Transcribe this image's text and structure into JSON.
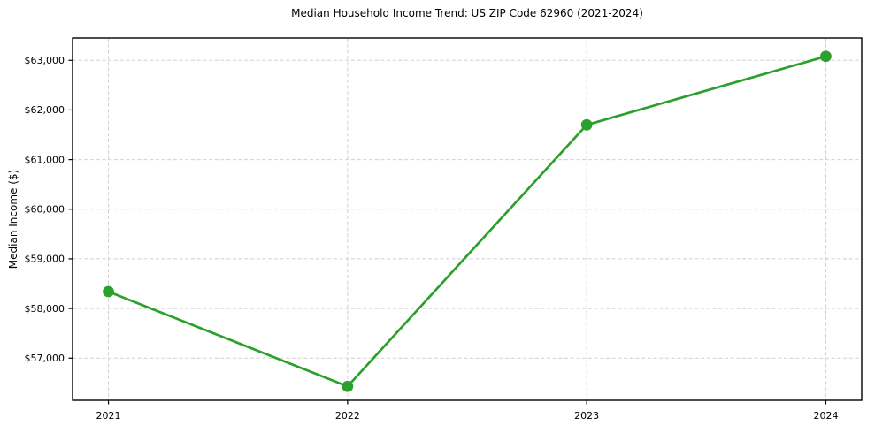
{
  "chart_data": {
    "type": "line",
    "title": "Median Household Income Trend: US ZIP Code 62960 (2021-2024)",
    "xlabel": "",
    "ylabel": "Median Income ($)",
    "x": [
      2021,
      2022,
      2023,
      2024
    ],
    "x_tick_labels": [
      "2021",
      "2022",
      "2023",
      "2024"
    ],
    "values": [
      58340,
      56430,
      61700,
      63080
    ],
    "y_ticks": [
      57000,
      58000,
      59000,
      60000,
      61000,
      62000,
      63000
    ],
    "y_tick_labels": [
      "$57,000",
      "$58,000",
      "$59,000",
      "$60,000",
      "$61,000",
      "$62,000",
      "$63,000"
    ],
    "xlim": [
      2020.85,
      2024.15
    ],
    "ylim": [
      56150,
      63450
    ],
    "grid": true,
    "grid_style": "dashed",
    "legend_position": "none",
    "line_color": "#2ca02c",
    "marker": "circle",
    "grid_color": "#cfcfcf",
    "axis_color": "#000000",
    "text_color": "#000000",
    "background": "#ffffff"
  }
}
